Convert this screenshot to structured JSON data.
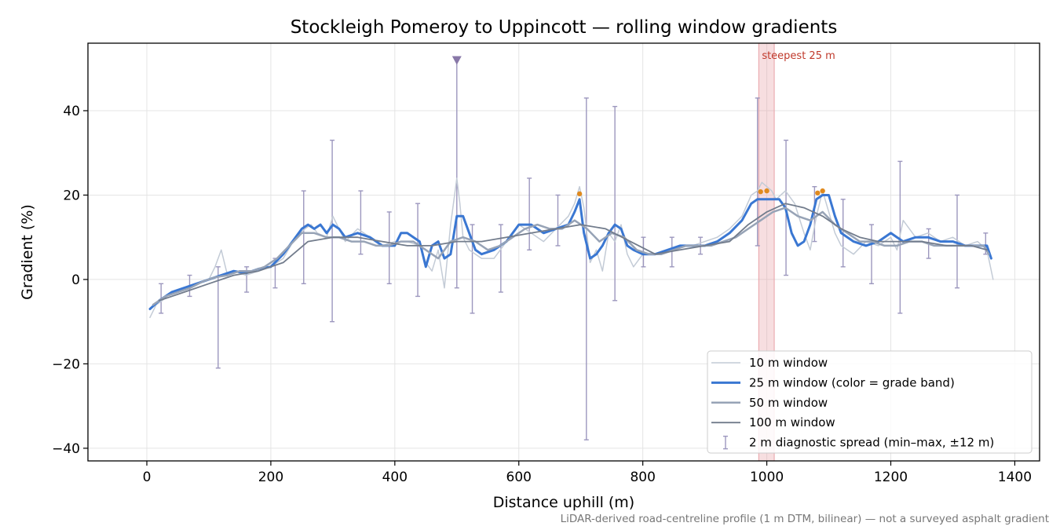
{
  "chart_data": {
    "type": "line",
    "title": "Stockleigh Pomeroy to Uppincott — rolling window gradients",
    "xlabel": "Distance uphill (m)",
    "ylabel": "Gradient (%)",
    "xlim": [
      -95,
      1440
    ],
    "ylim": [
      -43,
      56
    ],
    "xticks": [
      0,
      200,
      400,
      600,
      800,
      1000,
      1200,
      1400
    ],
    "yticks": [
      -40,
      -20,
      0,
      20,
      40
    ],
    "xtick_labels": [
      "0",
      "200",
      "400",
      "600",
      "800",
      "1000",
      "1200",
      "1400"
    ],
    "ytick_labels": [
      "−40",
      "−20",
      "0",
      "20",
      "40"
    ],
    "grid": true,
    "legend_position": "lower-right",
    "footnote": "LiDAR-derived road-centreline profile (1 m DTM, bilinear) — not a surveyed asphalt gradient",
    "highlight": {
      "label": "steepest 25 m",
      "x_range": [
        987,
        1012
      ],
      "color": "#e8a0a6"
    },
    "marker": {
      "x": 500,
      "y": 52,
      "shape": "triangle-down",
      "color": "#8878a8"
    },
    "steep_points": [
      [
        698,
        20.3
      ],
      [
        990,
        20.8
      ],
      [
        1000,
        21.0
      ],
      [
        1082,
        20.5
      ],
      [
        1090,
        21.0
      ]
    ],
    "series": [
      {
        "name": "10 m window",
        "color": "#c3cbd6",
        "width": 1.5,
        "x": [
          5,
          15,
          25,
          40,
          60,
          80,
          100,
          110,
          120,
          130,
          140,
          160,
          180,
          200,
          220,
          240,
          255,
          265,
          275,
          290,
          300,
          310,
          320,
          340,
          360,
          380,
          400,
          420,
          440,
          450,
          460,
          470,
          480,
          490,
          500,
          505,
          510,
          520,
          530,
          540,
          560,
          580,
          600,
          620,
          640,
          660,
          680,
          690,
          698,
          705,
          715,
          725,
          735,
          745,
          755,
          765,
          775,
          785,
          800,
          820,
          840,
          860,
          880,
          900,
          920,
          940,
          960,
          975,
          985,
          992,
          1000,
          1008,
          1015,
          1030,
          1045,
          1060,
          1070,
          1080,
          1090,
          1100,
          1110,
          1120,
          1140,
          1160,
          1180,
          1200,
          1210,
          1220,
          1240,
          1260,
          1280,
          1300,
          1320,
          1340,
          1355,
          1365
        ],
        "y": [
          -9,
          -6,
          -5,
          -3,
          -2,
          -1,
          0,
          3,
          7,
          1,
          2,
          1,
          2,
          3,
          5,
          10,
          12,
          13,
          11,
          10,
          15,
          12,
          9,
          12,
          10,
          8,
          9,
          9,
          8,
          4,
          2,
          7,
          -2,
          13,
          24,
          18,
          10,
          7,
          6,
          5,
          5,
          9,
          13,
          11,
          9,
          12,
          15,
          18,
          22,
          17,
          4,
          7,
          2,
          11,
          9,
          13,
          6,
          3,
          6,
          6,
          7,
          8,
          8,
          9,
          10,
          12,
          15,
          20,
          21,
          23,
          22,
          21,
          19,
          21,
          18,
          11,
          7,
          15,
          21,
          16,
          11,
          8,
          6,
          9,
          8,
          10,
          7,
          14,
          10,
          11,
          9,
          10,
          8,
          9,
          7,
          0
        ]
      },
      {
        "name": "25 m window (color = grade band)",
        "color": "#3a77d2",
        "width": 3,
        "x": [
          5,
          20,
          40,
          60,
          80,
          100,
          120,
          140,
          160,
          180,
          200,
          220,
          240,
          250,
          260,
          270,
          280,
          290,
          300,
          310,
          320,
          340,
          360,
          380,
          400,
          410,
          420,
          440,
          450,
          460,
          470,
          480,
          490,
          500,
          510,
          520,
          530,
          540,
          560,
          580,
          600,
          620,
          640,
          660,
          680,
          690,
          698,
          705,
          715,
          725,
          735,
          745,
          755,
          765,
          775,
          785,
          800,
          820,
          840,
          860,
          880,
          900,
          920,
          940,
          960,
          975,
          985,
          1000,
          1010,
          1020,
          1030,
          1040,
          1050,
          1060,
          1070,
          1080,
          1090,
          1100,
          1110,
          1120,
          1140,
          1160,
          1180,
          1200,
          1210,
          1220,
          1240,
          1260,
          1280,
          1300,
          1320,
          1340,
          1355,
          1362
        ],
        "y": [
          -7,
          -5,
          -3,
          -2,
          -1,
          0,
          1,
          2,
          1.5,
          2.5,
          3,
          6,
          10,
          12,
          13,
          12,
          13,
          11,
          13,
          12,
          10,
          11,
          10,
          8,
          8,
          11,
          11,
          9,
          3,
          8,
          9,
          5,
          6,
          15,
          15,
          11,
          7,
          6,
          7,
          9,
          13,
          13,
          11,
          12,
          13,
          16,
          19,
          11,
          5,
          6,
          8,
          11,
          13,
          12,
          8,
          7,
          6,
          6,
          7,
          8,
          8,
          8,
          9,
          11,
          14,
          18,
          19,
          19,
          19,
          19,
          17,
          11,
          8,
          9,
          13,
          19,
          20,
          20,
          15,
          11,
          9,
          8,
          9,
          11,
          10,
          9,
          10,
          10,
          9,
          9,
          8,
          8,
          8,
          5
        ]
      },
      {
        "name": "50 m window",
        "color": "#97a3b6",
        "width": 2.5,
        "x": [
          10,
          30,
          50,
          70,
          90,
          110,
          130,
          150,
          170,
          190,
          210,
          230,
          250,
          270,
          290,
          310,
          330,
          350,
          370,
          390,
          410,
          430,
          450,
          470,
          490,
          510,
          530,
          550,
          570,
          590,
          610,
          630,
          650,
          670,
          690,
          710,
          730,
          750,
          770,
          790,
          810,
          830,
          850,
          870,
          890,
          910,
          930,
          950,
          970,
          990,
          1010,
          1030,
          1050,
          1070,
          1090,
          1110,
          1130,
          1150,
          1170,
          1190,
          1210,
          1230,
          1250,
          1270,
          1290,
          1310,
          1330,
          1350,
          1358
        ],
        "y": [
          -6,
          -4,
          -3,
          -2,
          -0.5,
          0.5,
          1,
          2,
          2,
          3,
          5,
          8,
          11,
          11,
          10,
          10,
          9,
          9,
          8,
          8,
          9,
          9,
          7,
          5,
          9,
          10,
          9,
          7,
          8,
          10,
          12,
          13,
          12,
          12,
          14,
          12,
          9,
          11,
          10,
          7,
          6,
          6,
          7,
          8,
          8,
          8,
          9,
          10,
          12,
          14,
          16,
          17,
          15,
          14,
          16,
          13,
          11,
          9,
          9,
          8,
          8,
          9,
          9,
          8,
          8,
          8,
          8,
          8,
          6
        ]
      },
      {
        "name": "100 m window",
        "color": "#727c8c",
        "width": 1.8,
        "x": [
          20,
          60,
          100,
          140,
          180,
          220,
          260,
          300,
          340,
          380,
          420,
          460,
          500,
          540,
          580,
          620,
          660,
          700,
          740,
          780,
          820,
          860,
          900,
          940,
          970,
          1000,
          1030,
          1060,
          1090,
          1120,
          1150,
          1180,
          1210,
          1250,
          1290,
          1330,
          1355
        ],
        "y": [
          -5,
          -3,
          -1,
          1,
          2,
          4,
          9,
          10,
          10,
          9,
          8,
          8,
          9,
          9,
          10,
          11,
          12,
          13,
          12,
          9,
          6,
          7,
          8,
          9,
          13,
          16,
          18,
          17,
          15,
          12,
          10,
          9,
          9,
          9,
          8,
          8,
          7
        ]
      }
    ],
    "error_bars": {
      "name": "2 m diagnostic spread (min–max, ±12 m)",
      "color": "#9c97be",
      "points": [
        {
          "x": 23,
          "low": -8,
          "high": -1
        },
        {
          "x": 69,
          "low": -4,
          "high": 1
        },
        {
          "x": 115,
          "low": -21,
          "high": 3
        },
        {
          "x": 161,
          "low": -3,
          "high": 3
        },
        {
          "x": 207,
          "low": -2,
          "high": 5
        },
        {
          "x": 253,
          "low": -1,
          "high": 21
        },
        {
          "x": 299,
          "low": -10,
          "high": 33
        },
        {
          "x": 345,
          "low": 6,
          "high": 21
        },
        {
          "x": 391,
          "low": -1,
          "high": 16
        },
        {
          "x": 437,
          "low": -4,
          "high": 18
        },
        {
          "x": 500,
          "low": -2,
          "high": 52
        },
        {
          "x": 525,
          "low": -8,
          "high": 13
        },
        {
          "x": 571,
          "low": -3,
          "high": 13
        },
        {
          "x": 617,
          "low": 7,
          "high": 24
        },
        {
          "x": 663,
          "low": 8,
          "high": 20
        },
        {
          "x": 709,
          "low": -38,
          "high": 43
        },
        {
          "x": 755,
          "low": -5,
          "high": 41
        },
        {
          "x": 801,
          "low": 3,
          "high": 10
        },
        {
          "x": 847,
          "low": 3,
          "high": 10
        },
        {
          "x": 893,
          "low": 6,
          "high": 10
        },
        {
          "x": 985,
          "low": 8,
          "high": 43
        },
        {
          "x": 1031,
          "low": 1,
          "high": 33
        },
        {
          "x": 1077,
          "low": 9,
          "high": 22
        },
        {
          "x": 1123,
          "low": 3,
          "high": 19
        },
        {
          "x": 1169,
          "low": -1,
          "high": 13
        },
        {
          "x": 1215,
          "low": -8,
          "high": 28
        },
        {
          "x": 1261,
          "low": 5,
          "high": 12
        },
        {
          "x": 1307,
          "low": -2,
          "high": 20
        },
        {
          "x": 1353,
          "low": 6,
          "high": 11
        }
      ]
    }
  }
}
